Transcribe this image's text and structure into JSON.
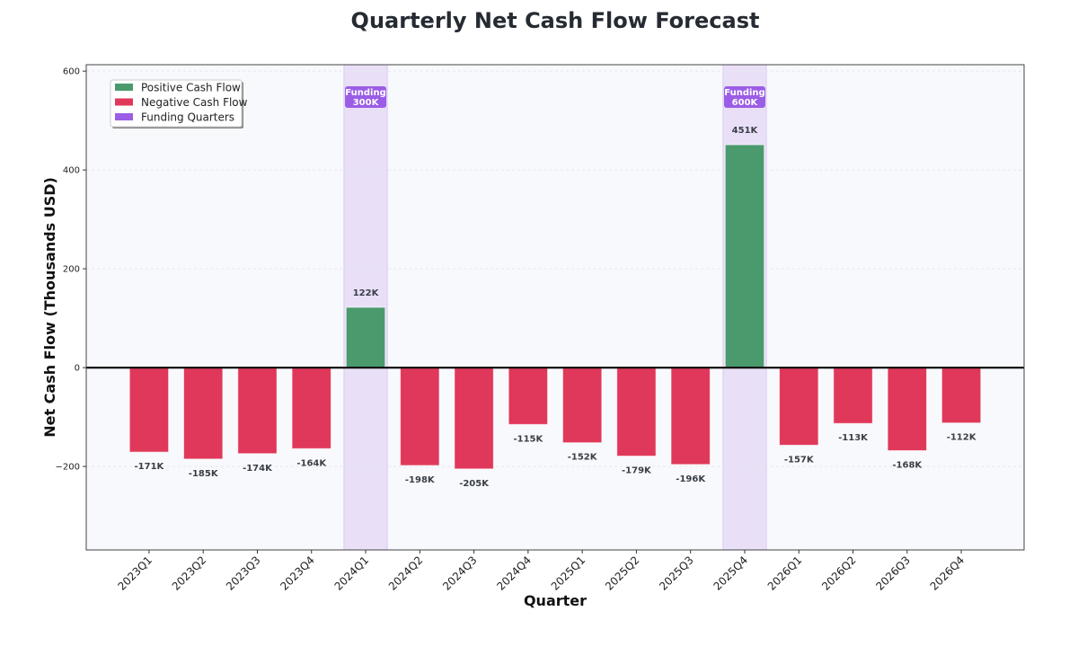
{
  "chart_data": {
    "type": "bar",
    "title": "Quarterly Net Cash Flow Forecast",
    "xlabel": "Quarter",
    "ylabel": "Net Cash Flow (Thousands USD)",
    "ylim": [
      -369,
      613
    ],
    "yticks": [
      -200,
      0,
      200,
      400,
      600
    ],
    "grid": true,
    "legend_position": "top-left",
    "categories": [
      "2023Q1",
      "2023Q2",
      "2023Q3",
      "2023Q4",
      "2024Q1",
      "2024Q2",
      "2024Q3",
      "2024Q4",
      "2025Q1",
      "2025Q2",
      "2025Q3",
      "2025Q4",
      "2026Q1",
      "2026Q2",
      "2026Q3",
      "2026Q4"
    ],
    "values": [
      -171,
      -185,
      -174,
      -164,
      122,
      -198,
      -205,
      -115,
      -152,
      -179,
      -196,
      451,
      -157,
      -113,
      -168,
      -112
    ],
    "data_labels": [
      "-171K",
      "-185K",
      "-174K",
      "-164K",
      "122K",
      "-198K",
      "-205K",
      "-115K",
      "-152K",
      "-179K",
      "-196K",
      "451K",
      "-157K",
      "-113K",
      "-168K",
      "-112K"
    ],
    "funding": [
      {
        "category": "2024Q1",
        "label_line1": "Funding",
        "label_line2": "300K"
      },
      {
        "category": "2025Q4",
        "label_line1": "Funding",
        "label_line2": "600K"
      }
    ],
    "legend": [
      {
        "label": "Positive Cash Flow",
        "color": "#4a9a6e"
      },
      {
        "label": "Negative Cash Flow",
        "color": "#e0385a"
      },
      {
        "label": "Funding Quarters",
        "color": "#9b5de5"
      }
    ],
    "colors": {
      "positive": "#4a9a6e",
      "negative": "#e0385a",
      "funding_band": "#e9e0f8",
      "funding_badge": "#9b5de5",
      "plot_bg": "#f8f9fc"
    }
  }
}
